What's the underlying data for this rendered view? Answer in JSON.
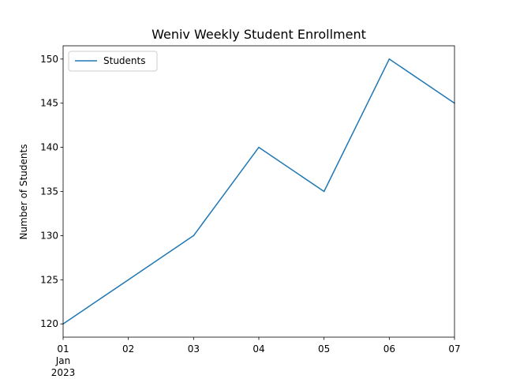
{
  "chart_data": {
    "type": "line",
    "title": "Weniv Weekly Student Enrollment",
    "xlabel": "",
    "ylabel": "Number of Students",
    "x": [
      "2023-01-01",
      "2023-01-02",
      "2023-01-03",
      "2023-01-04",
      "2023-01-05",
      "2023-01-06",
      "2023-01-07"
    ],
    "x_tick_labels": [
      "01",
      "02",
      "03",
      "04",
      "05",
      "06",
      "07"
    ],
    "x_tick_sublabels": [
      "Jan",
      "2023"
    ],
    "y_ticks": [
      120,
      125,
      130,
      135,
      140,
      145,
      150
    ],
    "ylim": [
      118.5,
      151.5
    ],
    "series": [
      {
        "name": "Students",
        "color": "#1f77b4",
        "values": [
          120,
          125,
          130,
          140,
          135,
          150,
          145
        ]
      }
    ],
    "legend": "upper-left",
    "grid": false
  }
}
